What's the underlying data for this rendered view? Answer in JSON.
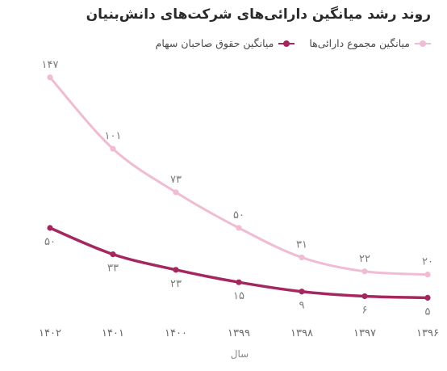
{
  "chart_data": {
    "type": "line",
    "title": "روند رشد میانگین دارائی‌های شرکت‌های دانش‌بنیان",
    "xlabel": "سال",
    "ylabel": "",
    "categories": [
      "۱۳۹۶",
      "۱۳۹۷",
      "۱۳۹۸",
      "۱۳۹۹",
      "۱۴۰۰",
      "۱۴۰۱",
      "۱۴۰۲"
    ],
    "series": [
      {
        "name": "میانگین مجموع دارائی‌ها",
        "color": "#f0bcd3",
        "values": [
          20,
          22,
          31,
          50,
          73,
          101,
          147
        ],
        "labels": [
          "۲۰",
          "۲۲",
          "۳۱",
          "۵۰",
          "۷۳",
          "۱۰۱",
          "۱۴۷"
        ]
      },
      {
        "name": "میانگین حقوق صاحبان سهام",
        "color": "#a4285f",
        "values": [
          5,
          6,
          9,
          15,
          23,
          33,
          50
        ],
        "labels": [
          "۵",
          "۶",
          "۹",
          "۱۵",
          "۲۳",
          "۳۳",
          "۵۰"
        ]
      }
    ],
    "ylim": [
      0,
      150
    ],
    "grid": false,
    "legend_position": "top-right"
  }
}
